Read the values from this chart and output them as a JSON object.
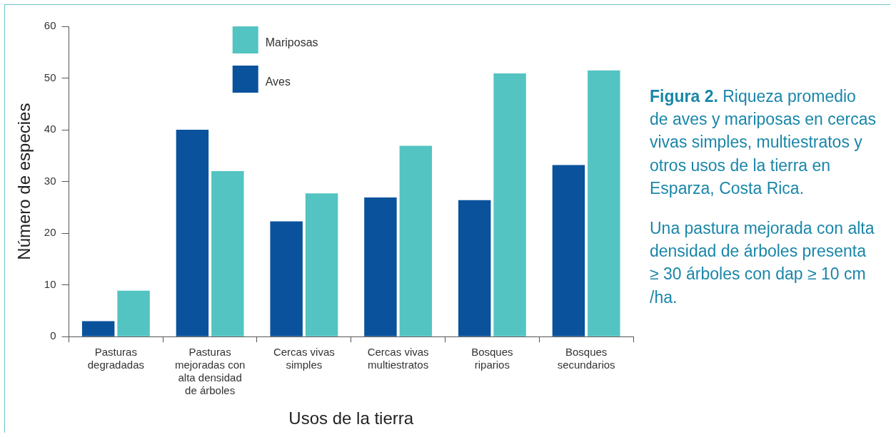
{
  "chart_data": {
    "type": "bar",
    "title": "Figura 2.",
    "subtitle": "Riqueza promedio de aves y mariposas en cercas vivas simples, multiestratos y otros usos de la tierra en Esparza, Costa Rica.",
    "annotations": [
      "Una pastura mejorada con alta densidad de árboles presenta ≥ 30 árboles con dap ≥ 10 cm /ha."
    ],
    "xlabel": "Usos de la tierra",
    "ylabel": "Número de especies",
    "categories": [
      "Pasturas degradadas",
      "Pasturas mejoradas con alta densidad de árboles",
      "Cercas vivas simples",
      "Cercas vivas multiestratos",
      "Bosques riparios",
      "Bosques secundarios"
    ],
    "series": [
      {
        "name": "Aves",
        "color": "#0a529c",
        "values": [
          3,
          40,
          22.3,
          26.9,
          26.4,
          33.2
        ]
      },
      {
        "name": "Mariposas",
        "color": "#53c4c2",
        "values": [
          8.9,
          32,
          27.7,
          36.9,
          50.9,
          51.5
        ]
      }
    ],
    "ylim": [
      0,
      60
    ],
    "yticks": [
      0,
      10,
      20,
      30,
      40,
      50,
      60
    ],
    "grid": false,
    "legend": "top"
  }
}
